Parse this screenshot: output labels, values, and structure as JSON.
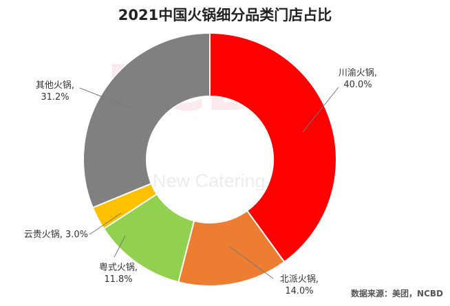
{
  "chart_data": {
    "type": "pie",
    "variant": "donut",
    "title": "2021中国火锅细分品类门店占比",
    "categories": [
      "川渝火锅",
      "北派火锅",
      "粤式火锅",
      "云贵火锅",
      "其他火锅"
    ],
    "values": [
      40.0,
      14.0,
      11.8,
      3.0,
      31.2
    ],
    "unit": "%",
    "colors": [
      "#ff0000",
      "#ed7d31",
      "#92d050",
      "#ffc000",
      "#808080"
    ],
    "data_labels": [
      [
        "川渝火锅,",
        "40.0%"
      ],
      [
        "北派火锅,",
        "14.0%"
      ],
      [
        "粤式火锅,",
        "11.8%"
      ],
      [
        "云贵火锅, 3.0%"
      ],
      [
        "其他火锅,",
        "31.2%"
      ]
    ],
    "legend": "none"
  },
  "watermark": {
    "logo": "NCBD",
    "text": "New Catering",
    "glyph": "餐"
  },
  "source_note": "数据来源：美团，NCBD"
}
